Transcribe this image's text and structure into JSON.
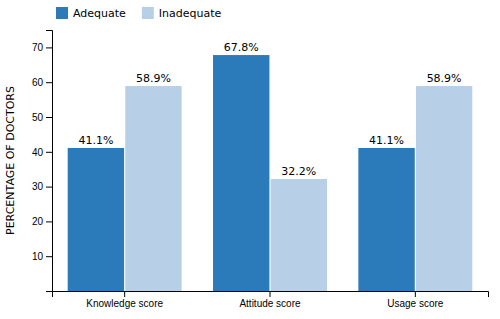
{
  "chart_data": {
    "type": "bar",
    "categories": [
      "Knowledge score",
      "Attitude score",
      "Usage score"
    ],
    "series": [
      {
        "name": "Adequate",
        "color": "#2b7bba",
        "values": [
          41.1,
          67.8,
          41.1
        ],
        "value_labels": [
          "41.1%",
          "67.8%",
          "41.1%"
        ]
      },
      {
        "name": "Inadequate",
        "color": "#b8cfe8",
        "values": [
          58.9,
          32.2,
          58.9
        ],
        "value_labels": [
          "58.9%",
          "32.2%",
          "58.9%"
        ]
      }
    ],
    "ylabel": "PERCENTAGE OF DOCTORS",
    "ylim": [
      0,
      75
    ],
    "yticks": [
      10,
      20,
      30,
      40,
      50,
      60,
      70
    ],
    "grid": false,
    "legend": "upper left",
    "data_labels": true
  }
}
